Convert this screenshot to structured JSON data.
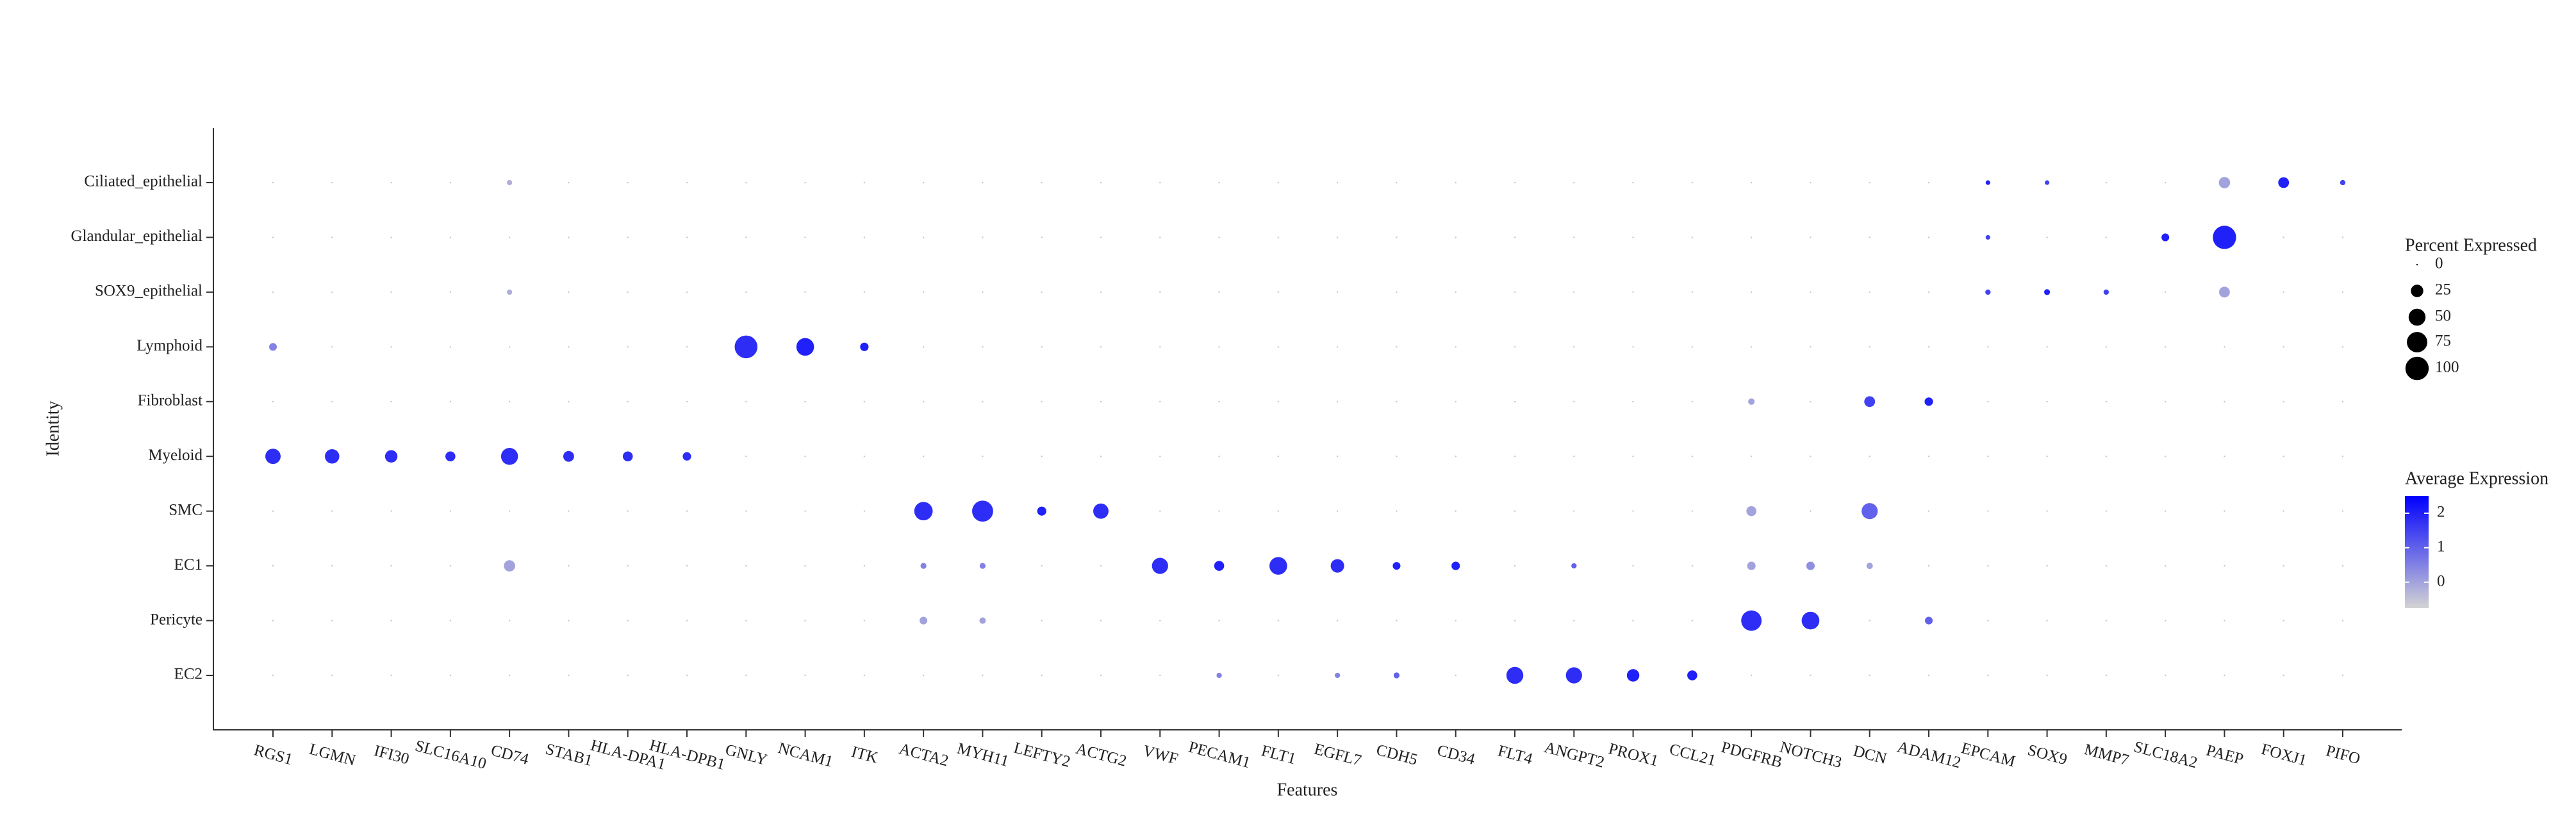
{
  "chart_data": {
    "type": "dot",
    "x_label": "Features",
    "y_label": "Identity",
    "categories": [
      "RGS1",
      "LGMN",
      "IFI30",
      "SLC16A10",
      "CD74",
      "STAB1",
      "HLA-DPA1",
      "HLA-DPB1",
      "GNLY",
      "NCAM1",
      "ITK",
      "ACTA2",
      "MYH11",
      "LEFTY2",
      "ACTG2",
      "VWF",
      "PECAM1",
      "FLT1",
      "EGFL7",
      "CDH5",
      "CD34",
      "FLT4",
      "ANGPT2",
      "PROX1",
      "CCL21",
      "PDGFRB",
      "NOTCH3",
      "DCN",
      "ADAM12",
      "EPCAM",
      "SOX9",
      "MMP7",
      "SLC18A2",
      "PAEP",
      "FOXJ1",
      "PIFO"
    ],
    "series": [
      {
        "name": "Ciliated_epithelial",
        "values": [
          0,
          0,
          0,
          0,
          3,
          0,
          0,
          0,
          0,
          0,
          0,
          0,
          0,
          0,
          0,
          0,
          0,
          0,
          0,
          0,
          0,
          0,
          0,
          0,
          0,
          0,
          0,
          0,
          0,
          2,
          2,
          0,
          0,
          20,
          18,
          3
        ],
        "expression": [
          -0.5,
          -0.5,
          -0.5,
          -0.5,
          -0.2,
          -0.5,
          -0.5,
          -0.5,
          -0.5,
          -0.5,
          -0.5,
          -0.5,
          -0.5,
          -0.5,
          -0.5,
          -0.5,
          -0.5,
          -0.5,
          -0.5,
          -0.5,
          -0.5,
          -0.5,
          -0.5,
          -0.5,
          -0.5,
          -0.5,
          -0.5,
          -0.5,
          -0.5,
          2,
          1.5,
          -0.5,
          -0.5,
          0,
          2,
          1.5
        ]
      },
      {
        "name": "Glandular_epithelial",
        "values": [
          0,
          0,
          0,
          0,
          0,
          0,
          0,
          0,
          0,
          0,
          0,
          0,
          0,
          0,
          0,
          0,
          0,
          0,
          0,
          0,
          0,
          0,
          0,
          0,
          0,
          0,
          0,
          0,
          0,
          2,
          0,
          0,
          8,
          100,
          0,
          0
        ],
        "expression": [
          -0.5,
          -0.5,
          -0.5,
          -0.5,
          -0.5,
          -0.5,
          -0.5,
          -0.5,
          -0.5,
          -0.5,
          -0.5,
          -0.5,
          -0.5,
          -0.5,
          -0.5,
          -0.5,
          -0.5,
          -0.5,
          -0.5,
          -0.5,
          -0.5,
          -0.5,
          -0.5,
          -0.5,
          -0.5,
          -0.5,
          -0.5,
          -0.5,
          -0.5,
          1.5,
          -0.5,
          -0.5,
          2,
          2,
          -0.5,
          -0.5
        ]
      },
      {
        "name": "SOX9_epithelial",
        "values": [
          0,
          0,
          0,
          0,
          3,
          0,
          0,
          0,
          0,
          0,
          0,
          0,
          0,
          0,
          0,
          0,
          0,
          0,
          0,
          0,
          0,
          0,
          0,
          0,
          0,
          0,
          0,
          0,
          0,
          3,
          4,
          3,
          0,
          18,
          0,
          0
        ],
        "expression": [
          -0.5,
          -0.5,
          -0.5,
          -0.5,
          -0.2,
          -0.5,
          -0.5,
          -0.5,
          -0.5,
          -0.5,
          -0.5,
          -0.5,
          -0.5,
          -0.5,
          -0.5,
          -0.5,
          -0.5,
          -0.5,
          -0.5,
          -0.5,
          -0.5,
          -0.5,
          -0.5,
          -0.5,
          -0.5,
          -0.5,
          -0.5,
          -0.5,
          -0.5,
          1.5,
          2,
          1.5,
          -0.5,
          0,
          -0.5,
          -0.5
        ]
      },
      {
        "name": "Lymphoid",
        "values": [
          8,
          0,
          0,
          0,
          0,
          0,
          0,
          0,
          95,
          55,
          10,
          0,
          0,
          0,
          0,
          0,
          0,
          0,
          0,
          0,
          0,
          0,
          0,
          0,
          0,
          0,
          0,
          0,
          0,
          0,
          0,
          0,
          0,
          0,
          0,
          0
        ],
        "expression": [
          0.5,
          -0.5,
          -0.5,
          -0.5,
          -0.5,
          -0.5,
          -0.5,
          -0.5,
          1.8,
          2,
          2,
          -0.5,
          -0.5,
          -0.5,
          -0.5,
          -0.5,
          -0.5,
          -0.5,
          -0.5,
          -0.5,
          -0.5,
          -0.5,
          -0.5,
          -0.5,
          -0.5,
          -0.5,
          -0.5,
          -0.5,
          -0.5,
          -0.5,
          -0.5,
          -0.5,
          -0.5,
          -0.5,
          -0.5,
          -0.5
        ]
      },
      {
        "name": "Fibroblast",
        "values": [
          0,
          0,
          0,
          0,
          0,
          0,
          0,
          0,
          0,
          0,
          0,
          0,
          0,
          0,
          0,
          0,
          0,
          0,
          0,
          0,
          0,
          0,
          0,
          0,
          0,
          5,
          0,
          18,
          10,
          0,
          0,
          0,
          0,
          0,
          0,
          0
        ],
        "expression": [
          -0.5,
          -0.5,
          -0.5,
          -0.5,
          -0.5,
          -0.5,
          -0.5,
          -0.5,
          -0.5,
          -0.5,
          -0.5,
          -0.5,
          -0.5,
          -0.5,
          -0.5,
          -0.5,
          -0.5,
          -0.5,
          -0.5,
          -0.5,
          -0.5,
          -0.5,
          -0.5,
          -0.5,
          -0.5,
          0,
          -0.5,
          1.5,
          2,
          -0.5,
          -0.5,
          -0.5,
          -0.5,
          -0.5,
          -0.5,
          -0.5
        ]
      },
      {
        "name": "Myeloid",
        "values": [
          40,
          35,
          25,
          15,
          50,
          18,
          15,
          10,
          0,
          0,
          0,
          0,
          0,
          0,
          0,
          0,
          0,
          0,
          0,
          0,
          0,
          0,
          0,
          0,
          0,
          0,
          0,
          0,
          0,
          0,
          0,
          0,
          0,
          0,
          0,
          0
        ],
        "expression": [
          1.8,
          1.8,
          1.8,
          1.8,
          1.8,
          1.8,
          1.8,
          1.8,
          -0.5,
          -0.5,
          -0.5,
          -0.5,
          -0.5,
          -0.5,
          -0.5,
          -0.5,
          -0.5,
          -0.5,
          -0.5,
          -0.5,
          -0.5,
          -0.5,
          -0.5,
          -0.5,
          -0.5,
          -0.5,
          -0.5,
          -0.5,
          -0.5,
          -0.5,
          -0.5,
          -0.5,
          -0.5,
          -0.5,
          -0.5,
          -0.5
        ]
      },
      {
        "name": "SMC",
        "values": [
          0,
          0,
          0,
          0,
          0,
          0,
          0,
          0,
          0,
          0,
          0,
          60,
          80,
          12,
          40,
          0,
          0,
          0,
          0,
          0,
          0,
          0,
          0,
          0,
          0,
          15,
          0,
          45,
          0,
          0,
          0,
          0,
          0,
          0,
          0,
          0
        ],
        "expression": [
          -0.5,
          -0.5,
          -0.5,
          -0.5,
          -0.5,
          -0.5,
          -0.5,
          -0.5,
          -0.5,
          -0.5,
          -0.5,
          1.8,
          1.8,
          2,
          1.8,
          -0.5,
          -0.5,
          -0.5,
          -0.5,
          -0.5,
          -0.5,
          -0.5,
          -0.5,
          -0.5,
          -0.5,
          0,
          -0.5,
          1,
          -0.5,
          -0.5,
          -0.5,
          -0.5,
          -0.5,
          -0.5,
          -0.5,
          -0.5
        ]
      },
      {
        "name": "EC1",
        "values": [
          0,
          0,
          0,
          0,
          20,
          0,
          0,
          0,
          0,
          0,
          0,
          4,
          4,
          0,
          0,
          45,
          15,
          55,
          30,
          8,
          10,
          0,
          3,
          0,
          0,
          10,
          10,
          5,
          0,
          0,
          0,
          0,
          0,
          0,
          0,
          0
        ],
        "expression": [
          -0.5,
          -0.5,
          -0.5,
          -0.5,
          0,
          -0.5,
          -0.5,
          -0.5,
          -0.5,
          -0.5,
          -0.5,
          0.5,
          0.5,
          -0.5,
          -0.5,
          1.8,
          2,
          1.8,
          1.8,
          2,
          2,
          -0.5,
          1,
          -0.5,
          -0.5,
          0,
          0.3,
          0,
          -0.5,
          -0.5,
          -0.5,
          -0.5,
          -0.5,
          -0.5,
          -0.5,
          -0.5
        ]
      },
      {
        "name": "Pericyte",
        "values": [
          0,
          0,
          0,
          0,
          0,
          0,
          0,
          0,
          0,
          0,
          0,
          8,
          5,
          0,
          0,
          0,
          0,
          0,
          0,
          0,
          0,
          0,
          0,
          0,
          0,
          75,
          55,
          0,
          8,
          0,
          0,
          0,
          0,
          0,
          0,
          0
        ],
        "expression": [
          -0.5,
          -0.5,
          -0.5,
          -0.5,
          -0.5,
          -0.5,
          -0.5,
          -0.5,
          -0.5,
          -0.5,
          -0.5,
          0,
          0,
          -0.5,
          -0.5,
          -0.5,
          -0.5,
          -0.5,
          -0.5,
          -0.5,
          -0.5,
          -0.5,
          -0.5,
          -0.5,
          -0.5,
          1.8,
          1.8,
          -0.5,
          1,
          -0.5,
          -0.5,
          -0.5,
          -0.5,
          -0.5,
          -0.5,
          -0.5
        ]
      },
      {
        "name": "EC2",
        "values": [
          0,
          0,
          0,
          0,
          0,
          0,
          0,
          0,
          0,
          0,
          0,
          0,
          0,
          0,
          0,
          0,
          3,
          0,
          3,
          4,
          0,
          50,
          45,
          25,
          15,
          0,
          0,
          0,
          0,
          0,
          0,
          0,
          0,
          0,
          0,
          0
        ],
        "expression": [
          -0.5,
          -0.5,
          -0.5,
          -0.5,
          -0.5,
          -0.5,
          -0.5,
          -0.5,
          -0.5,
          -0.5,
          -0.5,
          -0.5,
          -0.5,
          -0.5,
          -0.5,
          -0.5,
          0.5,
          -0.5,
          0.5,
          1,
          -0.5,
          1.8,
          1.8,
          2,
          2,
          -0.5,
          -0.5,
          -0.5,
          -0.5,
          -0.5,
          -0.5,
          -0.5,
          -0.5,
          -0.5,
          -0.5,
          -0.5
        ]
      }
    ],
    "size_legend": {
      "title": "Percent Expressed",
      "ticks": [
        0,
        25,
        50,
        75,
        100
      ]
    },
    "color_legend": {
      "title": "Average Expression",
      "lim": [
        -0.75,
        2.5
      ],
      "ticks": [
        0,
        1,
        2
      ],
      "colors": [
        "#d3d3d3",
        "#0000ff"
      ]
    }
  }
}
